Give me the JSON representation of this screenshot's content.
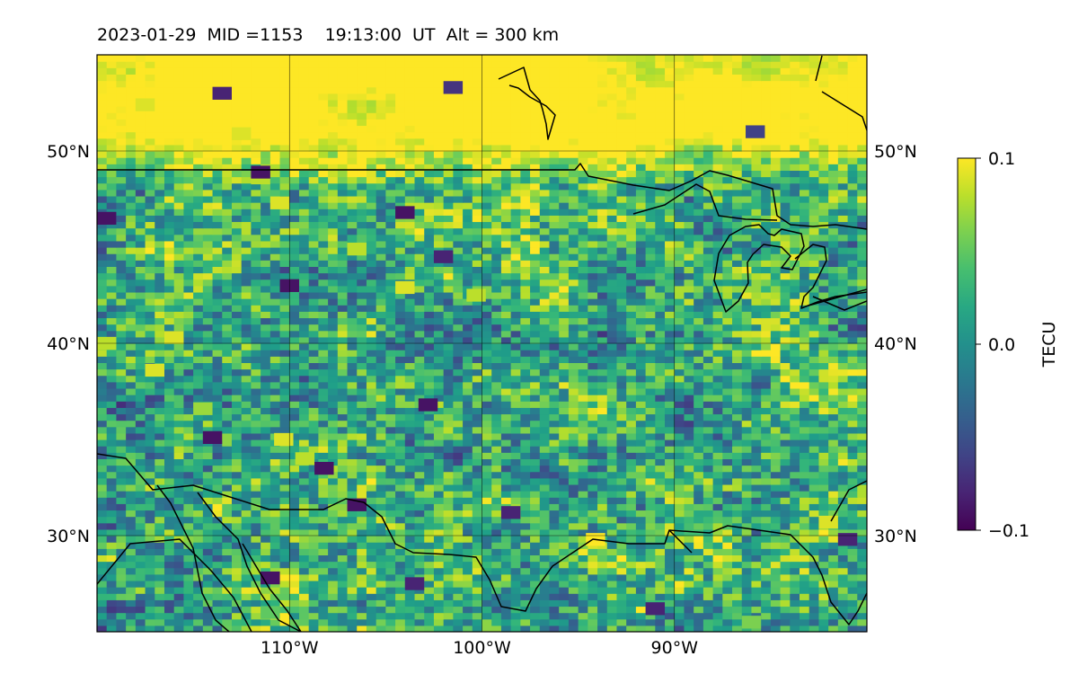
{
  "chart_data": {
    "type": "heatmap",
    "title": "2023-01-29  MID =1153    19:13:00  UT  Alt = 300 km",
    "map_projection": "equirectangular",
    "xlim": [
      -120,
      -80
    ],
    "ylim": [
      25,
      55
    ],
    "x_ticks": [
      {
        "value": -110,
        "label": "110°W"
      },
      {
        "value": -100,
        "label": "100°W"
      },
      {
        "value": -90,
        "label": "90°W"
      }
    ],
    "y_ticks": [
      {
        "value": 30,
        "label": "30°N"
      },
      {
        "value": 40,
        "label": "40°N"
      },
      {
        "value": 50,
        "label": "50°N"
      }
    ],
    "grid": true,
    "colorbar": {
      "label": "TECU",
      "colormap": "viridis",
      "vmin": -0.1,
      "vmax": 0.1,
      "ticks": [
        {
          "value": 0.1,
          "label": "0.1"
        },
        {
          "value": 0.0,
          "label": "0.0"
        },
        {
          "value": -0.1,
          "label": "−0.1"
        }
      ]
    },
    "field_description": "gridded TEC perturbation, approx 0.5° x 0.33° cells; smoother/more positive in the north, noisy mottled values elsewhere",
    "hotspots": [
      {
        "lon": -117.5,
        "lat": 52.4,
        "value": 0.09
      },
      {
        "lon": -112.5,
        "lat": 50.9,
        "value": 0.09
      },
      {
        "lon": -110.5,
        "lat": 47.3,
        "value": 0.09
      },
      {
        "lon": -111.5,
        "lat": 48.6,
        "value": 0.08
      },
      {
        "lon": -106.5,
        "lat": 44.9,
        "value": 0.08
      },
      {
        "lon": -104.0,
        "lat": 42.9,
        "value": 0.09
      },
      {
        "lon": -100.3,
        "lat": 42.5,
        "value": 0.08
      },
      {
        "lon": -117.0,
        "lat": 38.6,
        "value": 0.09
      },
      {
        "lon": -116.0,
        "lat": 40.3,
        "value": 0.09
      },
      {
        "lon": -114.5,
        "lat": 36.6,
        "value": 0.07
      },
      {
        "lon": -110.3,
        "lat": 35.0,
        "value": 0.09
      },
      {
        "lon": -109.2,
        "lat": 34.0,
        "value": 0.08
      },
      {
        "lon": -94.1,
        "lat": 29.8,
        "value": 0.1
      },
      {
        "lon": -82.0,
        "lat": 30.7,
        "value": 0.09
      },
      {
        "lon": -119.5,
        "lat": 40.0,
        "value": 0.08
      },
      {
        "lon": -86.0,
        "lat": 25.5,
        "value": 0.06
      },
      {
        "lon": -111.0,
        "lat": 26.0,
        "value": 0.05
      }
    ],
    "coldspots": [
      {
        "lon": -111.5,
        "lat": 48.9,
        "value": -0.09
      },
      {
        "lon": -110.0,
        "lat": 43.0,
        "value": -0.09
      },
      {
        "lon": -102.0,
        "lat": 44.5,
        "value": -0.08
      },
      {
        "lon": -104.0,
        "lat": 46.8,
        "value": -0.09
      },
      {
        "lon": -108.2,
        "lat": 33.5,
        "value": -0.09
      },
      {
        "lon": -106.5,
        "lat": 31.6,
        "value": -0.09
      },
      {
        "lon": -111.0,
        "lat": 27.8,
        "value": -0.09
      },
      {
        "lon": -102.8,
        "lat": 36.8,
        "value": -0.09
      },
      {
        "lon": -98.5,
        "lat": 31.2,
        "value": -0.08
      },
      {
        "lon": -103.5,
        "lat": 27.5,
        "value": -0.08
      },
      {
        "lon": -113.5,
        "lat": 53.0,
        "value": -0.08
      },
      {
        "lon": -101.5,
        "lat": 53.3,
        "value": -0.07
      },
      {
        "lon": -91.0,
        "lat": 26.2,
        "value": -0.08
      },
      {
        "lon": -119.5,
        "lat": 46.5,
        "value": -0.09
      },
      {
        "lon": -114.0,
        "lat": 35.1,
        "value": -0.09
      },
      {
        "lon": -81.0,
        "lat": 29.8,
        "value": -0.08
      },
      {
        "lon": -85.8,
        "lat": 51.0,
        "value": -0.06
      }
    ]
  }
}
